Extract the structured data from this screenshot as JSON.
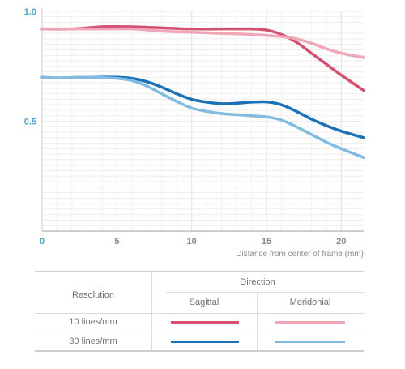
{
  "chart_data": {
    "type": "line",
    "xlabel": "Distance from center of frame (mm)",
    "ylabel": "",
    "xlim": [
      0,
      21.5
    ],
    "ylim": [
      0,
      1.0
    ],
    "x_ticks": [
      "0",
      "5",
      "10",
      "15",
      "20"
    ],
    "y_ticks": [
      "0.5",
      "1.0"
    ],
    "grid": "horizontal and vertical, light gray",
    "series": [
      {
        "key": "s10",
        "color": "#d4506f",
        "points": [
          [
            0,
            0.92
          ],
          [
            2,
            0.92
          ],
          [
            4,
            0.93
          ],
          [
            6,
            0.93
          ],
          [
            8,
            0.925
          ],
          [
            10,
            0.92
          ],
          [
            12,
            0.92
          ],
          [
            14,
            0.92
          ],
          [
            15,
            0.915
          ],
          [
            16,
            0.895
          ],
          [
            17,
            0.86
          ],
          [
            18,
            0.81
          ],
          [
            19,
            0.76
          ],
          [
            20,
            0.71
          ],
          [
            21.5,
            0.64
          ]
        ]
      },
      {
        "key": "m10",
        "color": "#f0a6b7",
        "points": [
          [
            0,
            0.92
          ],
          [
            2,
            0.92
          ],
          [
            4,
            0.92
          ],
          [
            6,
            0.92
          ],
          [
            8,
            0.91
          ],
          [
            10,
            0.905
          ],
          [
            12,
            0.9
          ],
          [
            14,
            0.895
          ],
          [
            16,
            0.885
          ],
          [
            17,
            0.875
          ],
          [
            18,
            0.855
          ],
          [
            19,
            0.83
          ],
          [
            20,
            0.81
          ],
          [
            21.5,
            0.79
          ]
        ]
      },
      {
        "key": "s30",
        "color": "#1a71b8",
        "points": [
          [
            0,
            0.7
          ],
          [
            1,
            0.697
          ],
          [
            3,
            0.7
          ],
          [
            5,
            0.7
          ],
          [
            6,
            0.695
          ],
          [
            7,
            0.68
          ],
          [
            8,
            0.655
          ],
          [
            9,
            0.625
          ],
          [
            10,
            0.6
          ],
          [
            11,
            0.587
          ],
          [
            12,
            0.58
          ],
          [
            13,
            0.582
          ],
          [
            14,
            0.587
          ],
          [
            15,
            0.588
          ],
          [
            16,
            0.575
          ],
          [
            17,
            0.545
          ],
          [
            18,
            0.51
          ],
          [
            19,
            0.48
          ],
          [
            20,
            0.455
          ],
          [
            21.5,
            0.425
          ]
        ]
      },
      {
        "key": "m30",
        "color": "#82bbe0",
        "points": [
          [
            0,
            0.7
          ],
          [
            1,
            0.697
          ],
          [
            3,
            0.7
          ],
          [
            5,
            0.695
          ],
          [
            6,
            0.685
          ],
          [
            7,
            0.66
          ],
          [
            8,
            0.625
          ],
          [
            9,
            0.59
          ],
          [
            10,
            0.56
          ],
          [
            11,
            0.545
          ],
          [
            12,
            0.535
          ],
          [
            13,
            0.53
          ],
          [
            14,
            0.525
          ],
          [
            15,
            0.52
          ],
          [
            16,
            0.505
          ],
          [
            17,
            0.475
          ],
          [
            18,
            0.44
          ],
          [
            19,
            0.405
          ],
          [
            20,
            0.375
          ],
          [
            21.5,
            0.335
          ]
        ]
      }
    ]
  },
  "legend": {
    "direction_header": "Direction",
    "resolution_header": "Resolution",
    "sagittal_label": "Sagittal",
    "meridional_label": "Meridonial",
    "row1_label": "10 lines/mm",
    "row2_label": "30 lines/mm",
    "colors": {
      "sagittal_10": "#d4506f",
      "meridional_10": "#f0a6b7",
      "sagittal_30": "#1a71b8",
      "meridional_30": "#82bbe0"
    }
  }
}
